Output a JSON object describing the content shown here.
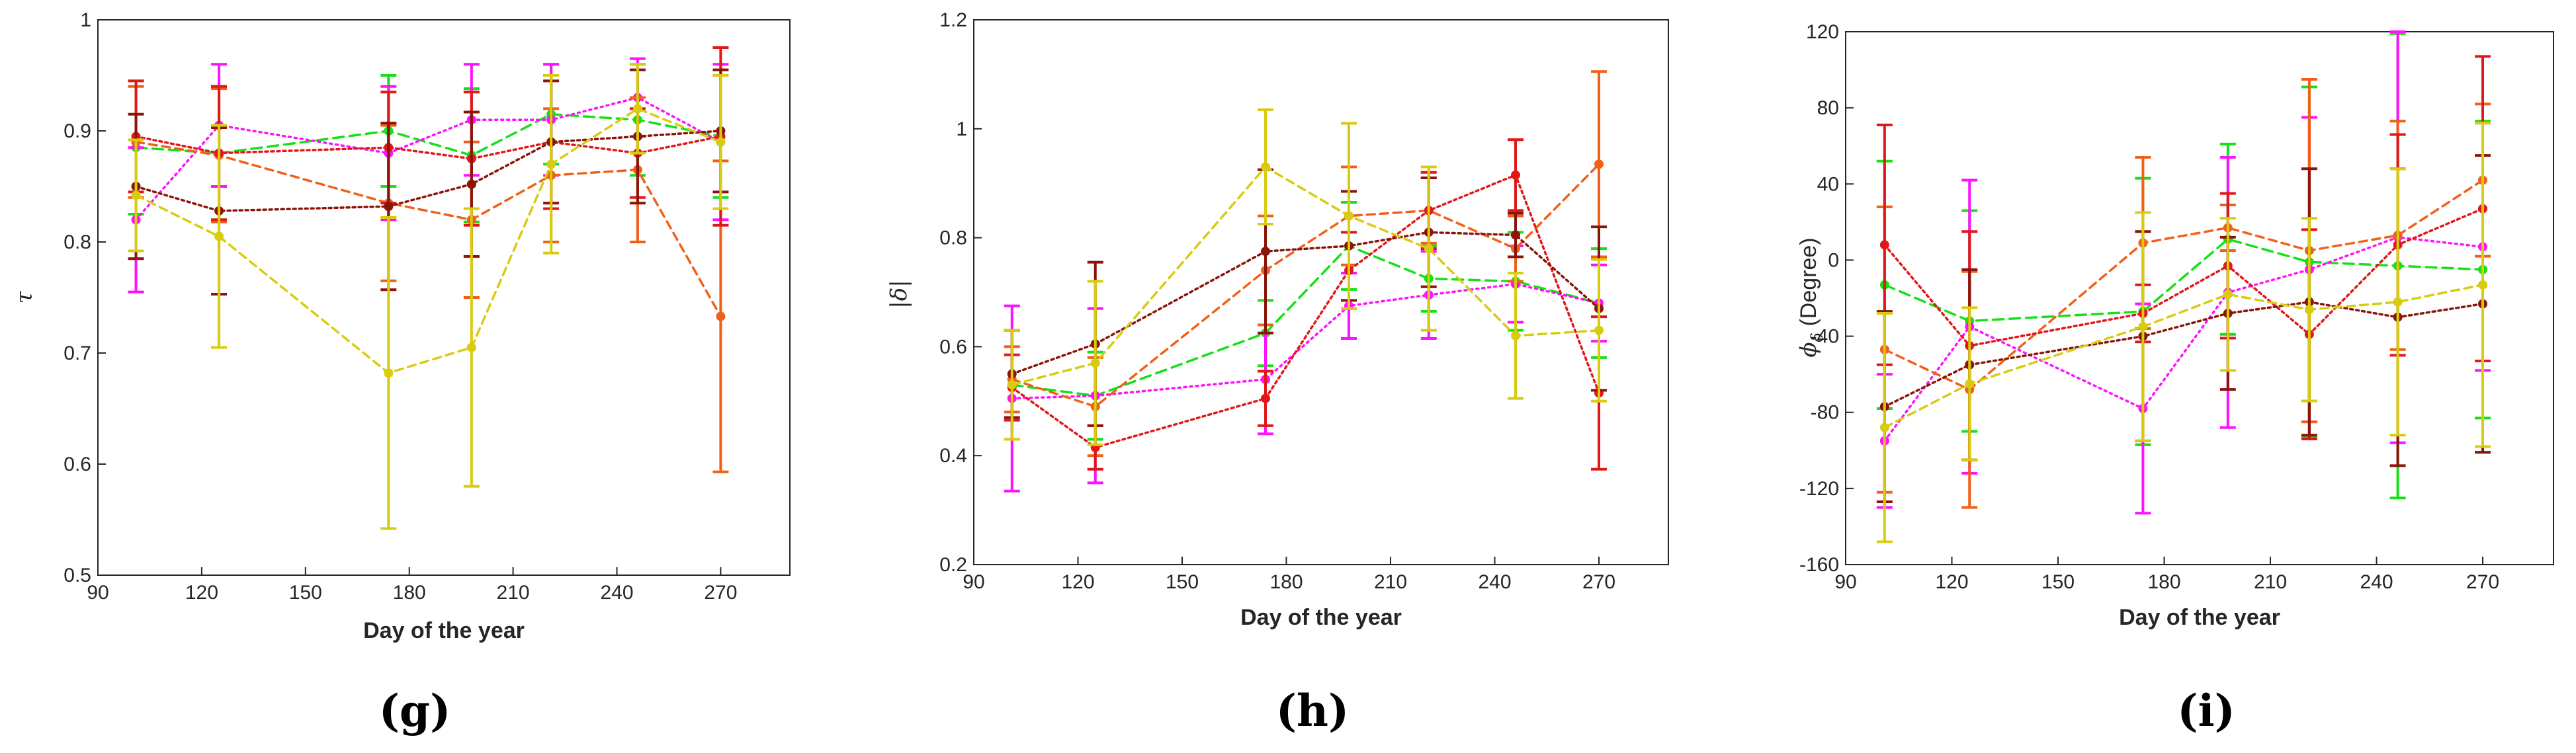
{
  "chart_data": [
    {
      "type": "line",
      "panel_label": "(g)",
      "xlabel": "Day of the year",
      "ylabel": "τ",
      "xlim": [
        90,
        290
      ],
      "ylim": [
        0.5,
        1.0
      ],
      "xticks": [
        90,
        120,
        150,
        180,
        210,
        240,
        270
      ],
      "yticks": [
        0.5,
        0.6,
        0.7,
        0.8,
        0.9,
        1.0
      ],
      "ytick_labels": [
        "0.5",
        "0.6",
        "0.7",
        "0.8",
        "0.9",
        "1"
      ],
      "series": [
        {
          "name": "lime dashed",
          "color": "#16e016",
          "dash": "16,9",
          "x": [
            101,
            125,
            174,
            198,
            221,
            246,
            270
          ],
          "values": [
            0.885,
            0.88,
            0.9,
            0.878,
            0.915,
            0.91,
            0.895
          ],
          "err": [
            0.06,
            0.06,
            0.05,
            0.06,
            0.045,
            0.05,
            0.055
          ]
        },
        {
          "name": "magenta dotted",
          "color": "#ff10ff",
          "dash": "3,6",
          "x": [
            101,
            125,
            174,
            198,
            221,
            246,
            270
          ],
          "values": [
            0.82,
            0.905,
            0.88,
            0.91,
            0.91,
            0.93,
            0.89
          ],
          "err": [
            0.065,
            0.055,
            0.06,
            0.05,
            0.05,
            0.035,
            0.07
          ]
        },
        {
          "name": "orange-red dashed",
          "color": "#f06018",
          "dash": "12,8",
          "x": [
            101,
            125,
            174,
            198,
            221,
            246,
            270
          ],
          "values": [
            0.89,
            0.878,
            0.835,
            0.82,
            0.86,
            0.865,
            0.733
          ],
          "err": [
            0.05,
            0.06,
            0.07,
            0.07,
            0.06,
            0.065,
            0.14
          ]
        },
        {
          "name": "red dotted",
          "color": "#e01818",
          "dash": "4,5",
          "x": [
            101,
            125,
            174,
            198,
            221,
            246,
            270
          ],
          "values": [
            0.895,
            0.88,
            0.885,
            0.875,
            0.89,
            0.88,
            0.895
          ],
          "err": [
            0.05,
            0.06,
            0.05,
            0.06,
            0.06,
            0.04,
            0.08
          ]
        },
        {
          "name": "dark red dotted",
          "color": "#8a1408",
          "dash": "4,5",
          "x": [
            101,
            125,
            174,
            198,
            221,
            246,
            270
          ],
          "values": [
            0.85,
            0.828,
            0.832,
            0.852,
            0.89,
            0.895,
            0.9
          ],
          "err": [
            0.065,
            0.075,
            0.075,
            0.065,
            0.055,
            0.06,
            0.055
          ]
        },
        {
          "name": "yellow dashed",
          "color": "#d8cc10",
          "dash": "12,8",
          "x": [
            101,
            125,
            174,
            198,
            221,
            246,
            270
          ],
          "values": [
            0.842,
            0.805,
            0.682,
            0.705,
            0.87,
            0.92,
            0.89
          ],
          "err": [
            0.05,
            0.1,
            0.14,
            0.125,
            0.08,
            0.04,
            0.06
          ]
        }
      ]
    },
    {
      "type": "line",
      "panel_label": "(h)",
      "xlabel": "Day of the year",
      "ylabel": "|δ|",
      "xlim": [
        90,
        290
      ],
      "ylim": [
        0.2,
        1.2
      ],
      "xticks": [
        90,
        120,
        150,
        180,
        210,
        240,
        270
      ],
      "yticks": [
        0.2,
        0.4,
        0.6,
        0.8,
        1.0,
        1.2
      ],
      "ytick_labels": [
        "0.2",
        "0.4",
        "0.6",
        "0.8",
        "1",
        "1.2"
      ],
      "series": [
        {
          "name": "lime dashed",
          "color": "#16e016",
          "dash": "16,9",
          "x": [
            101,
            125,
            174,
            198,
            221,
            246,
            270
          ],
          "values": [
            0.53,
            0.51,
            0.625,
            0.785,
            0.725,
            0.72,
            0.68
          ],
          "err": [
            0.1,
            0.08,
            0.06,
            0.08,
            0.06,
            0.09,
            0.1
          ]
        },
        {
          "name": "magenta dotted",
          "color": "#ff10ff",
          "dash": "3,6",
          "x": [
            101,
            125,
            174,
            198,
            221,
            246,
            270
          ],
          "values": [
            0.505,
            0.51,
            0.54,
            0.675,
            0.695,
            0.715,
            0.68
          ],
          "err": [
            0.17,
            0.16,
            0.1,
            0.06,
            0.08,
            0.07,
            0.07
          ]
        },
        {
          "name": "orange-red dashed",
          "color": "#f06018",
          "dash": "12,8",
          "x": [
            101,
            125,
            174,
            198,
            221,
            246,
            270
          ],
          "values": [
            0.54,
            0.49,
            0.74,
            0.84,
            0.85,
            0.78,
            0.935
          ],
          "err": [
            0.06,
            0.09,
            0.1,
            0.09,
            0.06,
            0.06,
            0.17
          ]
        },
        {
          "name": "red dotted",
          "color": "#e01818",
          "dash": "4,5",
          "x": [
            101,
            125,
            174,
            198,
            221,
            246,
            270
          ],
          "values": [
            0.525,
            0.415,
            0.505,
            0.74,
            0.85,
            0.915,
            0.515
          ],
          "err": [
            0.06,
            0.04,
            0.05,
            0.07,
            0.07,
            0.065,
            0.14
          ]
        },
        {
          "name": "dark red dotted",
          "color": "#8a1408",
          "dash": "4,5",
          "x": [
            101,
            125,
            174,
            198,
            221,
            246,
            270
          ],
          "values": [
            0.55,
            0.605,
            0.775,
            0.785,
            0.81,
            0.805,
            0.67
          ],
          "err": [
            0.08,
            0.15,
            0.15,
            0.1,
            0.1,
            0.04,
            0.15
          ]
        },
        {
          "name": "yellow dashed",
          "color": "#d8cc10",
          "dash": "12,8",
          "x": [
            101,
            125,
            174,
            198,
            221,
            246,
            270
          ],
          "values": [
            0.53,
            0.57,
            0.93,
            0.84,
            0.78,
            0.62,
            0.63
          ],
          "err": [
            0.1,
            0.15,
            0.105,
            0.17,
            0.15,
            0.115,
            0.13
          ]
        }
      ]
    },
    {
      "type": "line",
      "panel_label": "(i)",
      "xlabel": "Day of the year",
      "ylabel": "ϕδ (Degree)",
      "ylabel_main": "ϕ",
      "ylabel_sub": "δ",
      "ylabel_rest": " (Degree)",
      "xlim": [
        90,
        290
      ],
      "ylim": [
        -160,
        120
      ],
      "xticks": [
        90,
        120,
        150,
        180,
        210,
        240,
        270
      ],
      "yticks": [
        -160,
        -120,
        -80,
        -40,
        0,
        40,
        80,
        120
      ],
      "ytick_labels": [
        "-160",
        "-120",
        "-80",
        "-40",
        "0",
        "40",
        "80",
        "120"
      ],
      "series": [
        {
          "name": "lime dashed",
          "color": "#16e016",
          "dash": "16,9",
          "x": [
            101,
            125,
            174,
            198,
            221,
            246,
            270
          ],
          "values": [
            -13,
            -32,
            -27,
            11,
            -1,
            -3,
            -5
          ],
          "err": [
            65,
            58,
            70,
            50,
            92,
            122,
            78
          ]
        },
        {
          "name": "magenta dotted",
          "color": "#ff10ff",
          "dash": "3,6",
          "x": [
            101,
            125,
            174,
            198,
            221,
            246,
            270
          ],
          "values": [
            -95,
            -35,
            -78,
            -17,
            -5,
            12,
            7
          ],
          "err": [
            35,
            77,
            55,
            71,
            80,
            108,
            65
          ]
        },
        {
          "name": "orange-red dashed",
          "color": "#f06018",
          "dash": "12,8",
          "x": [
            101,
            125,
            174,
            198,
            221,
            246,
            270
          ],
          "values": [
            -47,
            -68,
            9,
            17,
            5,
            13,
            42
          ],
          "err": [
            75,
            62,
            45,
            12,
            90,
            60,
            40
          ]
        },
        {
          "name": "red dotted",
          "color": "#e01818",
          "dash": "4,5",
          "x": [
            101,
            125,
            174,
            198,
            221,
            246,
            270
          ],
          "values": [
            8,
            -45,
            -28,
            -3,
            -39,
            8,
            27
          ],
          "err": [
            63,
            60,
            15,
            38,
            55,
            58,
            80
          ]
        },
        {
          "name": "dark red dotted",
          "color": "#8a1408",
          "dash": "4,5",
          "x": [
            101,
            125,
            174,
            198,
            221,
            246,
            270
          ],
          "values": [
            -77,
            -55,
            -40,
            -28,
            -22,
            -30,
            -23
          ],
          "err": [
            50,
            50,
            55,
            40,
            70,
            78,
            78
          ]
        },
        {
          "name": "yellow dashed",
          "color": "#d8cc10",
          "dash": "12,8",
          "x": [
            101,
            125,
            174,
            198,
            221,
            246,
            270
          ],
          "values": [
            -88,
            -65,
            -35,
            -18,
            -26,
            -22,
            -13
          ],
          "err": [
            60,
            40,
            60,
            40,
            48,
            70,
            85
          ]
        }
      ]
    }
  ]
}
